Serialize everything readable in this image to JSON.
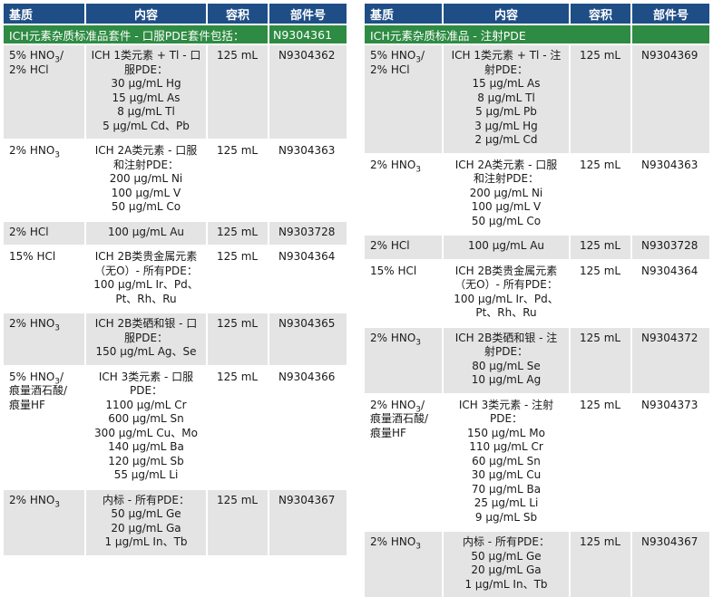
{
  "headers": {
    "matrix": "基质",
    "content": "内容",
    "volume": "容积",
    "part_number": "部件号"
  },
  "left": {
    "banner": "ICH元素杂质标准品套件 - 口服PDE套件包括：",
    "banner_pn": "N9304361",
    "rows": [
      {
        "matrix_lines": [
          {
            "pre": "5% HNO",
            "sub": "3",
            "post": "/"
          },
          {
            "pre": "2% HCl"
          }
        ],
        "content_lines": [
          "ICH 1类元素 + Tl - 口",
          "服PDE：",
          "30 µg/mL Hg",
          "15 µg/mL As",
          "8 µg/mL Tl",
          "5 µg/mL Cd、Pb"
        ],
        "volume": "125 mL",
        "pn": "N9304362"
      },
      {
        "matrix_lines": [
          {
            "pre": "2% HNO",
            "sub": "3"
          }
        ],
        "content_lines": [
          "ICH 2A类元素 - 口服",
          "和注射PDE：",
          "200 µg/mL Ni",
          "100 µg/mL V",
          "50 µg/mL Co"
        ],
        "volume": "125 mL",
        "pn": "N9304363"
      },
      {
        "matrix_lines": [
          {
            "pre": "2% HCl"
          }
        ],
        "content_lines": [
          "100 µg/mL Au"
        ],
        "volume": "125 mL",
        "pn": "N9303728"
      },
      {
        "matrix_lines": [
          {
            "pre": "15% HCl"
          }
        ],
        "content_lines": [
          "ICH 2B类贵金属元素",
          "（无O）- 所有PDE：",
          "100 µg/mL Ir、Pd、",
          "Pt、Rh、Ru"
        ],
        "volume": "125 mL",
        "pn": "N9304364"
      },
      {
        "matrix_lines": [
          {
            "pre": "2% HNO",
            "sub": "3"
          }
        ],
        "content_lines": [
          "ICH 2B类硒和银 - 口",
          "服PDE：",
          "150 µg/mL Ag、Se"
        ],
        "volume": "125 mL",
        "pn": "N9304365"
      },
      {
        "matrix_lines": [
          {
            "pre": "5% HNO",
            "sub": "3",
            "post": "/"
          },
          {
            "pre": "痕量酒石酸/"
          },
          {
            "pre": "痕量HF"
          }
        ],
        "content_lines": [
          "ICH 3类元素 - 口服",
          "PDE：",
          "1100 µg/mL Cr",
          "600 µg/mL Sn",
          "300 µg/mL Cu、Mo",
          "140 µg/mL Ba",
          "120 µg/mL Sb",
          "55 µg/mL Li"
        ],
        "volume": "125 mL",
        "pn": "N9304366"
      },
      {
        "matrix_lines": [
          {
            "pre": "2% HNO",
            "sub": "3"
          }
        ],
        "content_lines": [
          "内标 - 所有PDE：",
          "50 µg/mL Ge",
          "20 µg/mL Ga",
          "1 µg/mL In、Tb"
        ],
        "volume": "125 mL",
        "pn": "N9304367"
      }
    ]
  },
  "right": {
    "banner": "ICH元素杂质标准品 - 注射PDE",
    "banner_pn": "",
    "rows": [
      {
        "matrix_lines": [
          {
            "pre": "5% HNO",
            "sub": "3",
            "post": "/"
          },
          {
            "pre": "2% HCl"
          }
        ],
        "content_lines": [
          "ICH 1类元素 + Tl - 注",
          "射PDE：",
          "15 µg/mL As",
          "8 µg/mL Tl",
          "5 µg/mL Pb",
          "3 µg/mL Hg",
          "2 µg/mL Cd"
        ],
        "volume": "125 mL",
        "pn": "N9304369"
      },
      {
        "matrix_lines": [
          {
            "pre": "2% HNO",
            "sub": "3"
          }
        ],
        "content_lines": [
          "ICH 2A类元素 - 口服",
          "和注射PDE：",
          "200 µg/mL Ni",
          "100 µg/mL V",
          "50 µg/mL Co"
        ],
        "volume": "125 mL",
        "pn": "N9304363"
      },
      {
        "matrix_lines": [
          {
            "pre": "2% HCl"
          }
        ],
        "content_lines": [
          "100 µg/mL Au"
        ],
        "volume": "125 mL",
        "pn": "N9303728"
      },
      {
        "matrix_lines": [
          {
            "pre": "15% HCl"
          }
        ],
        "content_lines": [
          "ICH 2B类贵金属元素",
          "（无O）- 所有PDE：",
          "100 µg/mL Ir、Pd、",
          "Pt、Rh、Ru"
        ],
        "volume": "125 mL",
        "pn": "N9304364"
      },
      {
        "matrix_lines": [
          {
            "pre": "2% HNO",
            "sub": "3"
          }
        ],
        "content_lines": [
          "ICH 2B类硒和银 - 注",
          "射PDE：",
          "80 µg/mL Se",
          "10 µg/mL Ag"
        ],
        "volume": "125 mL",
        "pn": "N9304372"
      },
      {
        "matrix_lines": [
          {
            "pre": "2% HNO",
            "sub": "3",
            "post": "/"
          },
          {
            "pre": "痕量酒石酸/"
          },
          {
            "pre": "痕量HF"
          }
        ],
        "content_lines": [
          "ICH 3类元素 - 注射",
          "PDE：",
          "150 µg/mL Mo",
          "110 µg/mL Cr",
          "60 µg/mL Sn",
          "30 µg/mL Cu",
          "70 µg/mL Ba",
          "25 µg/mL Li",
          "9 µg/mL Sb"
        ],
        "volume": "125 mL",
        "pn": "N9304373"
      },
      {
        "matrix_lines": [
          {
            "pre": "2% HNO",
            "sub": "3"
          }
        ],
        "content_lines": [
          "内标 - 所有PDE：",
          "50 µg/mL Ge",
          "20 µg/mL Ga",
          "1 µg/mL In、Tb"
        ],
        "volume": "125 mL",
        "pn": "N9304367"
      }
    ]
  }
}
